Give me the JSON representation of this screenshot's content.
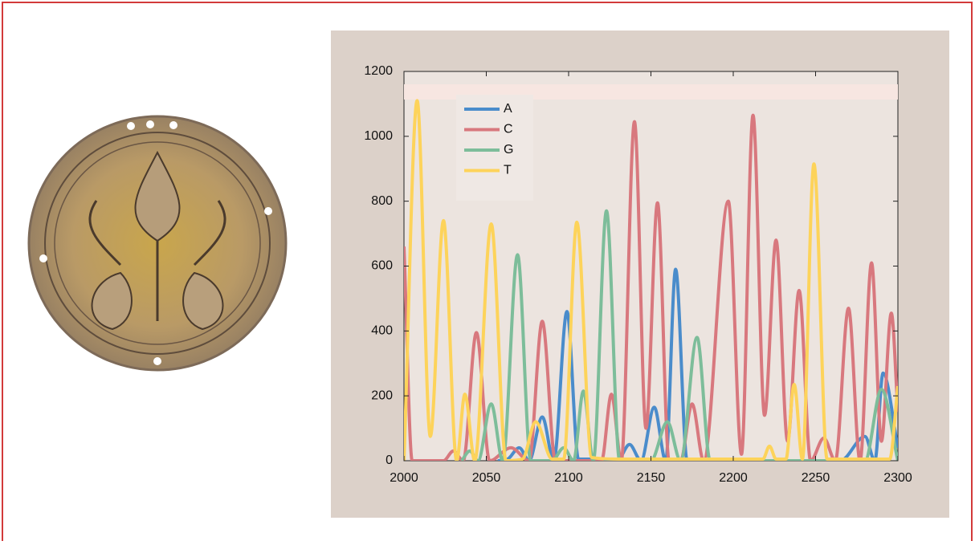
{
  "chart_data": {
    "type": "line",
    "xlim": [
      2000,
      2300
    ],
    "ylim": [
      0,
      1200
    ],
    "xticks": [
      2000,
      2050,
      2100,
      2150,
      2200,
      2250,
      2300
    ],
    "yticks": [
      0,
      200,
      400,
      600,
      800,
      1000,
      1200
    ],
    "legend": "upper left",
    "series": [
      {
        "name": "A",
        "color": "#4a8ccb",
        "x": [
          2057,
          2063,
          2070,
          2076,
          2084,
          2091,
          2099,
          2106,
          2130,
          2137,
          2144,
          2152,
          2159,
          2165,
          2172,
          2265,
          2280,
          2286,
          2291,
          2300
        ],
        "values": [
          0,
          5,
          40,
          0,
          135,
          0,
          460,
          5,
          5,
          50,
          0,
          165,
          0,
          590,
          0,
          0,
          75,
          0,
          270,
          40
        ]
      },
      {
        "name": "C",
        "color": "#d8787e",
        "x": [
          2000,
          2005,
          2024,
          2030,
          2036,
          2044,
          2052,
          2065,
          2076,
          2084,
          2092,
          2120,
          2126,
          2132,
          2140,
          2147,
          2154,
          2161,
          2168,
          2175,
          2182,
          2197,
          2205,
          2212,
          2219,
          2226,
          2233,
          2240,
          2247,
          2255,
          2262,
          2270,
          2277,
          2284,
          2290,
          2296,
          2300
        ],
        "values": [
          660,
          0,
          0,
          30,
          0,
          395,
          0,
          40,
          0,
          430,
          0,
          0,
          205,
          0,
          1045,
          100,
          795,
          0,
          0,
          175,
          0,
          800,
          20,
          1065,
          140,
          680,
          60,
          525,
          0,
          70,
          0,
          470,
          0,
          610,
          60,
          455,
          150
        ]
      },
      {
        "name": "G",
        "color": "#7dbd9a",
        "x": [
          2035,
          2040,
          2045,
          2053,
          2060,
          2069,
          2077,
          2090,
          2097,
          2103,
          2109,
          2115,
          2123,
          2131,
          2150,
          2160,
          2168,
          2178,
          2186,
          2260,
          2280,
          2290,
          2300
        ],
        "values": [
          0,
          30,
          0,
          175,
          0,
          635,
          0,
          0,
          40,
          0,
          215,
          0,
          770,
          0,
          0,
          120,
          0,
          380,
          0,
          0,
          0,
          220,
          0
        ]
      },
      {
        "name": "T",
        "color": "#fdd35a",
        "x": [
          2000,
          2008,
          2016,
          2024,
          2032,
          2037,
          2043,
          2053,
          2062,
          2072,
          2080,
          2090,
          2097,
          2105,
          2114,
          2130,
          2160,
          2200,
          2218,
          2222,
          2226,
          2232,
          2237,
          2242,
          2249,
          2257,
          2280,
          2295,
          2300
        ],
        "values": [
          0,
          1110,
          75,
          740,
          0,
          205,
          0,
          730,
          0,
          5,
          120,
          5,
          5,
          735,
          10,
          5,
          5,
          5,
          5,
          45,
          5,
          5,
          235,
          5,
          915,
          5,
          5,
          5,
          230
        ]
      }
    ]
  }
}
